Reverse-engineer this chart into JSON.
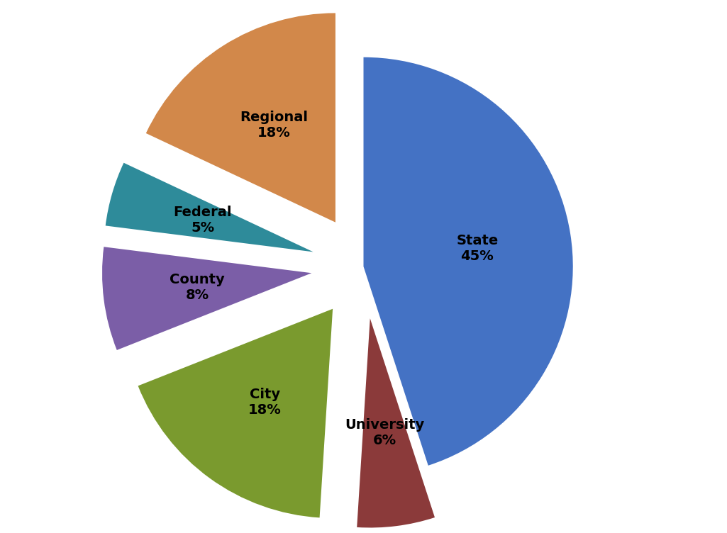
{
  "labels": [
    "State",
    "University",
    "City",
    "County",
    "Federal",
    "Regional"
  ],
  "values": [
    45,
    6,
    18,
    8,
    5,
    18
  ],
  "colors": [
    "#4472C4",
    "#8B3A3A",
    "#7A9A2E",
    "#7B5EA7",
    "#2E8B9A",
    "#D2884A"
  ],
  "startangle": 90,
  "label_fontsize": 14,
  "label_fontweight": "bold",
  "figsize": [
    10.25,
    7.52
  ],
  "dpi": 100,
  "explode_amount": 0.25
}
